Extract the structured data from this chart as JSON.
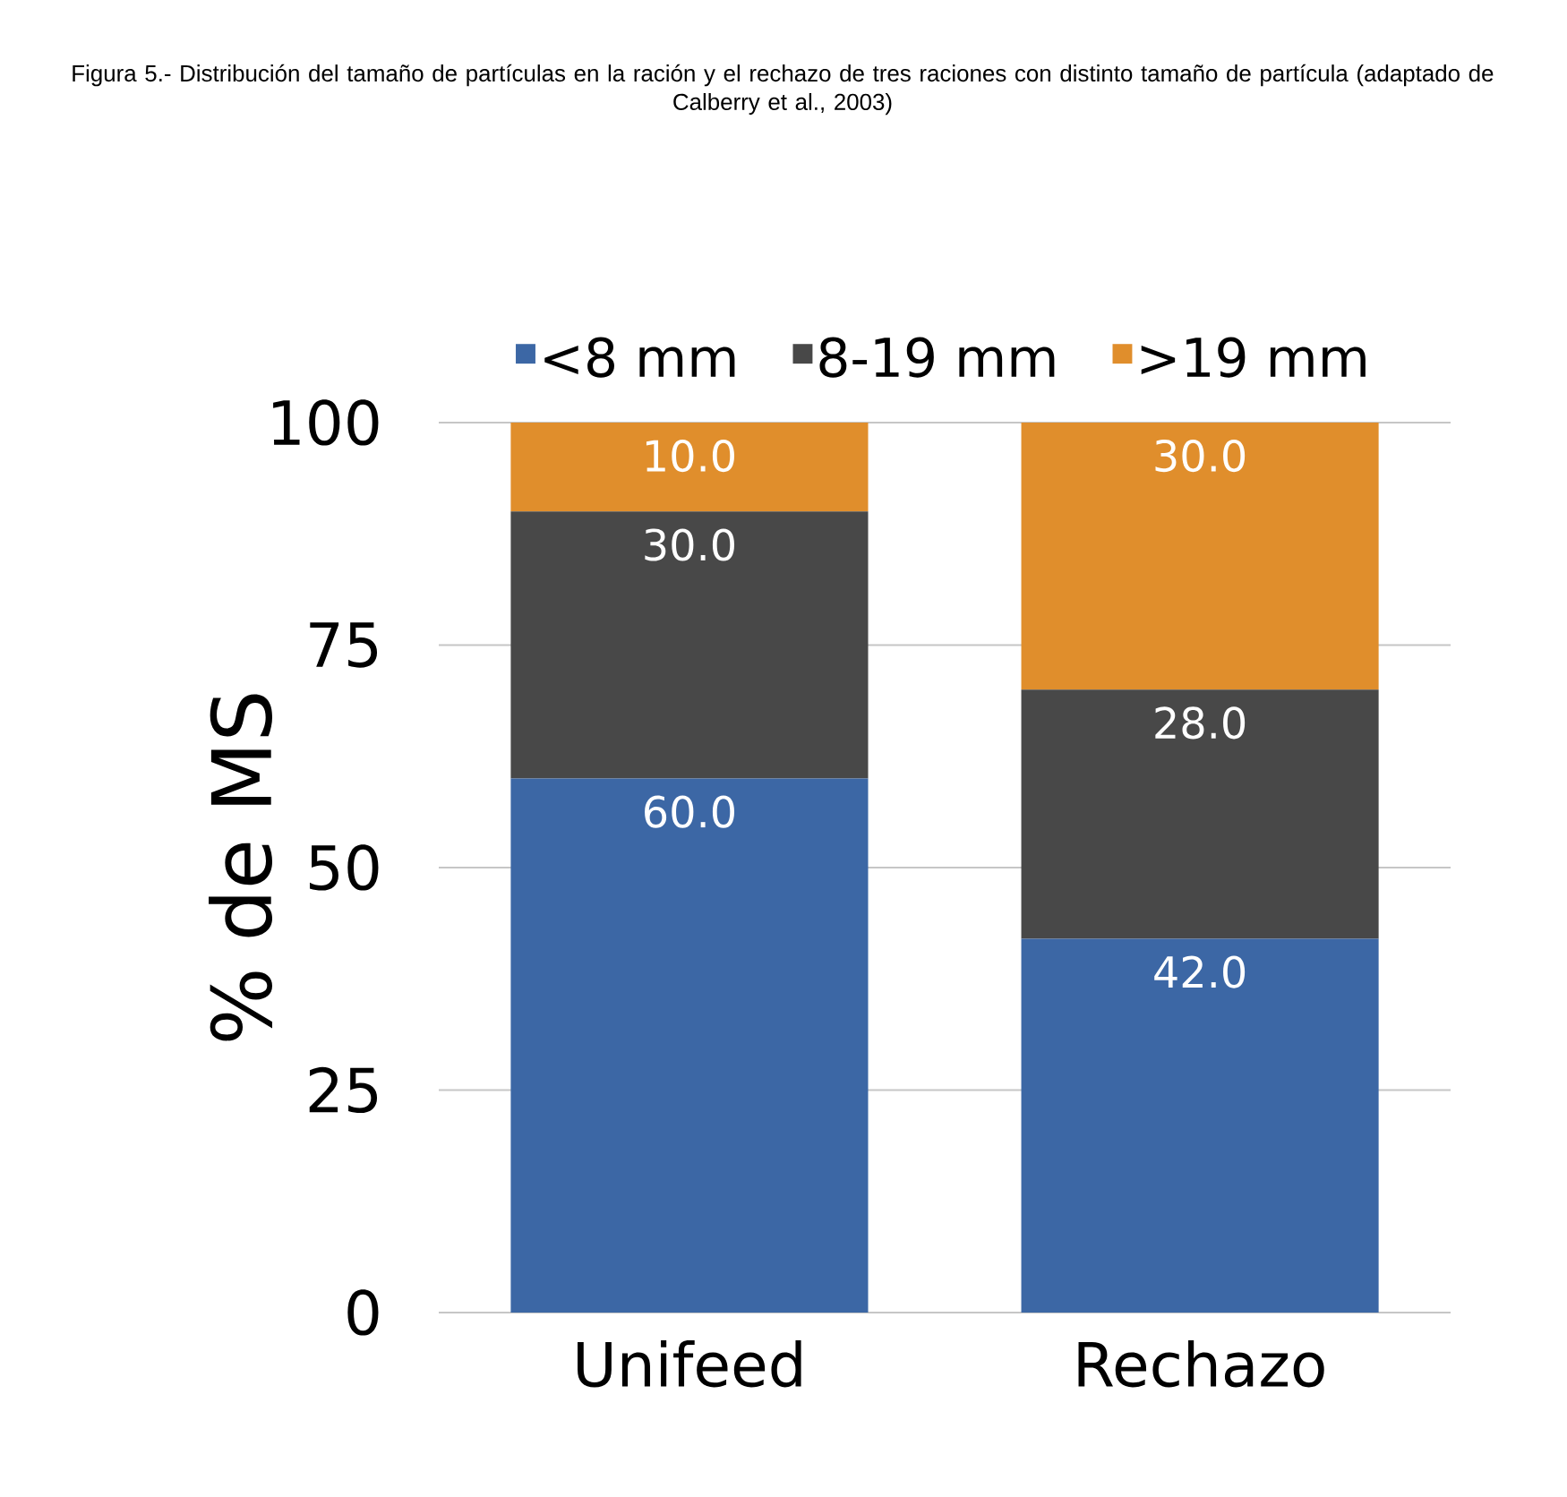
{
  "chart_data": {
    "type": "bar",
    "stacked": true,
    "title": "Figura 5.- Distribución del tamaño de partículas en la ración y el rechazo de tres raciones con distinto tamaño de partícula (adaptado de Calberry et al., 2003)",
    "ylabel": "% de MS",
    "categories": [
      "Unifeed",
      "Rechazo"
    ],
    "series": [
      {
        "name": "<8 mm",
        "color": "#3c67a5",
        "values": [
          60,
          42
        ],
        "value_labels": [
          "60.0",
          "42.0"
        ]
      },
      {
        "name": "8-19 mm",
        "color": "#484848",
        "values": [
          30,
          28
        ],
        "value_labels": [
          "30.0",
          "28.0"
        ]
      },
      {
        "name": ">19 mm",
        "color": "#e08e2c",
        "values": [
          10,
          30
        ],
        "value_labels": [
          "10.0",
          "30.0"
        ]
      }
    ],
    "ylim": [
      0,
      100
    ],
    "yticks": [
      0,
      25,
      50,
      75,
      100
    ],
    "grid": "y",
    "legend": "top"
  }
}
